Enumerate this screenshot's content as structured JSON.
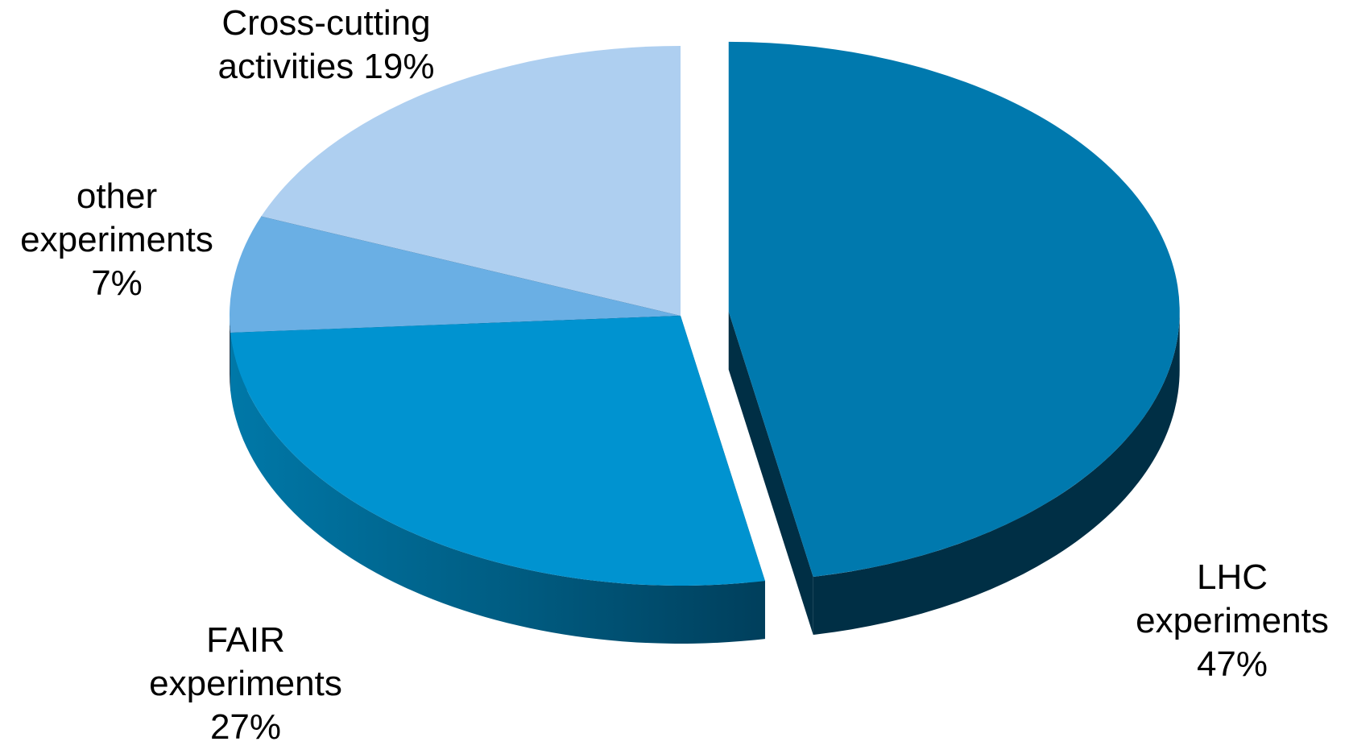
{
  "chart_data": {
    "type": "pie",
    "style": "3d-exploded",
    "title": "",
    "slices": [
      {
        "name": "LHC experiments",
        "value": 47,
        "label_lines": [
          "LHC",
          "experiments",
          "47%"
        ],
        "color_top": "#0079ae",
        "color_side": "#002f45",
        "exploded": true
      },
      {
        "name": "FAIR experiments",
        "value": 27,
        "label_lines": [
          "FAIR",
          "experiments",
          "27%"
        ],
        "color_top": "#0093d0",
        "color_side": "#005577",
        "exploded": false
      },
      {
        "name": "other experiments",
        "value": 7,
        "label_lines": [
          "other",
          "experiments",
          "7%"
        ],
        "color_top": "#6aafe4",
        "color_side": "#2b4357",
        "exploded": false
      },
      {
        "name": "Cross-cutting activities",
        "value": 19,
        "label_lines": [
          "Cross-cutting",
          "activities 19%"
        ],
        "color_top": "#aecff0",
        "color_side": "#45505b",
        "exploded": false
      }
    ],
    "legend": "none"
  }
}
